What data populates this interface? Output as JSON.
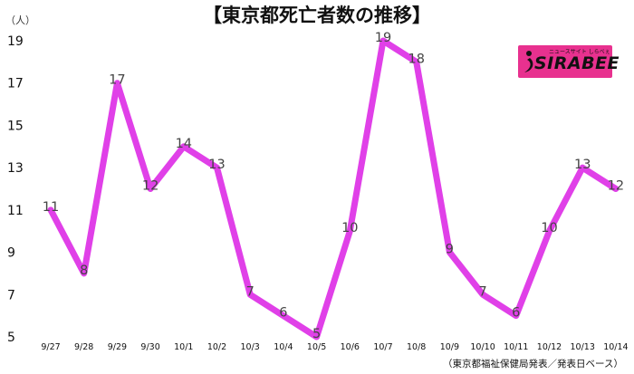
{
  "chart_data": {
    "type": "line",
    "title": "【東京都死亡者数の推移】",
    "unit_label": "（人）",
    "categories": [
      "9/27",
      "9/28",
      "9/29",
      "9/30",
      "10/1",
      "10/2",
      "10/3",
      "10/4",
      "10/5",
      "10/6",
      "10/7",
      "10/8",
      "10/9",
      "10/10",
      "10/11",
      "10/12",
      "10/13",
      "10/14"
    ],
    "values": [
      11,
      8,
      17,
      12,
      14,
      13,
      7,
      6,
      5,
      10,
      19,
      18,
      9,
      7,
      6,
      10,
      13,
      12
    ],
    "yticks": [
      5,
      7,
      9,
      11,
      13,
      15,
      17,
      19
    ],
    "ylim": [
      5,
      19
    ],
    "grid": false,
    "line_color": "#e040e8",
    "source": "（東京都福祉保健局発表／発表日ベース）"
  },
  "logo": {
    "text": "SIRABEE",
    "tagline": "ニュースサイト しらべぇ",
    "color": "#e8318f"
  }
}
